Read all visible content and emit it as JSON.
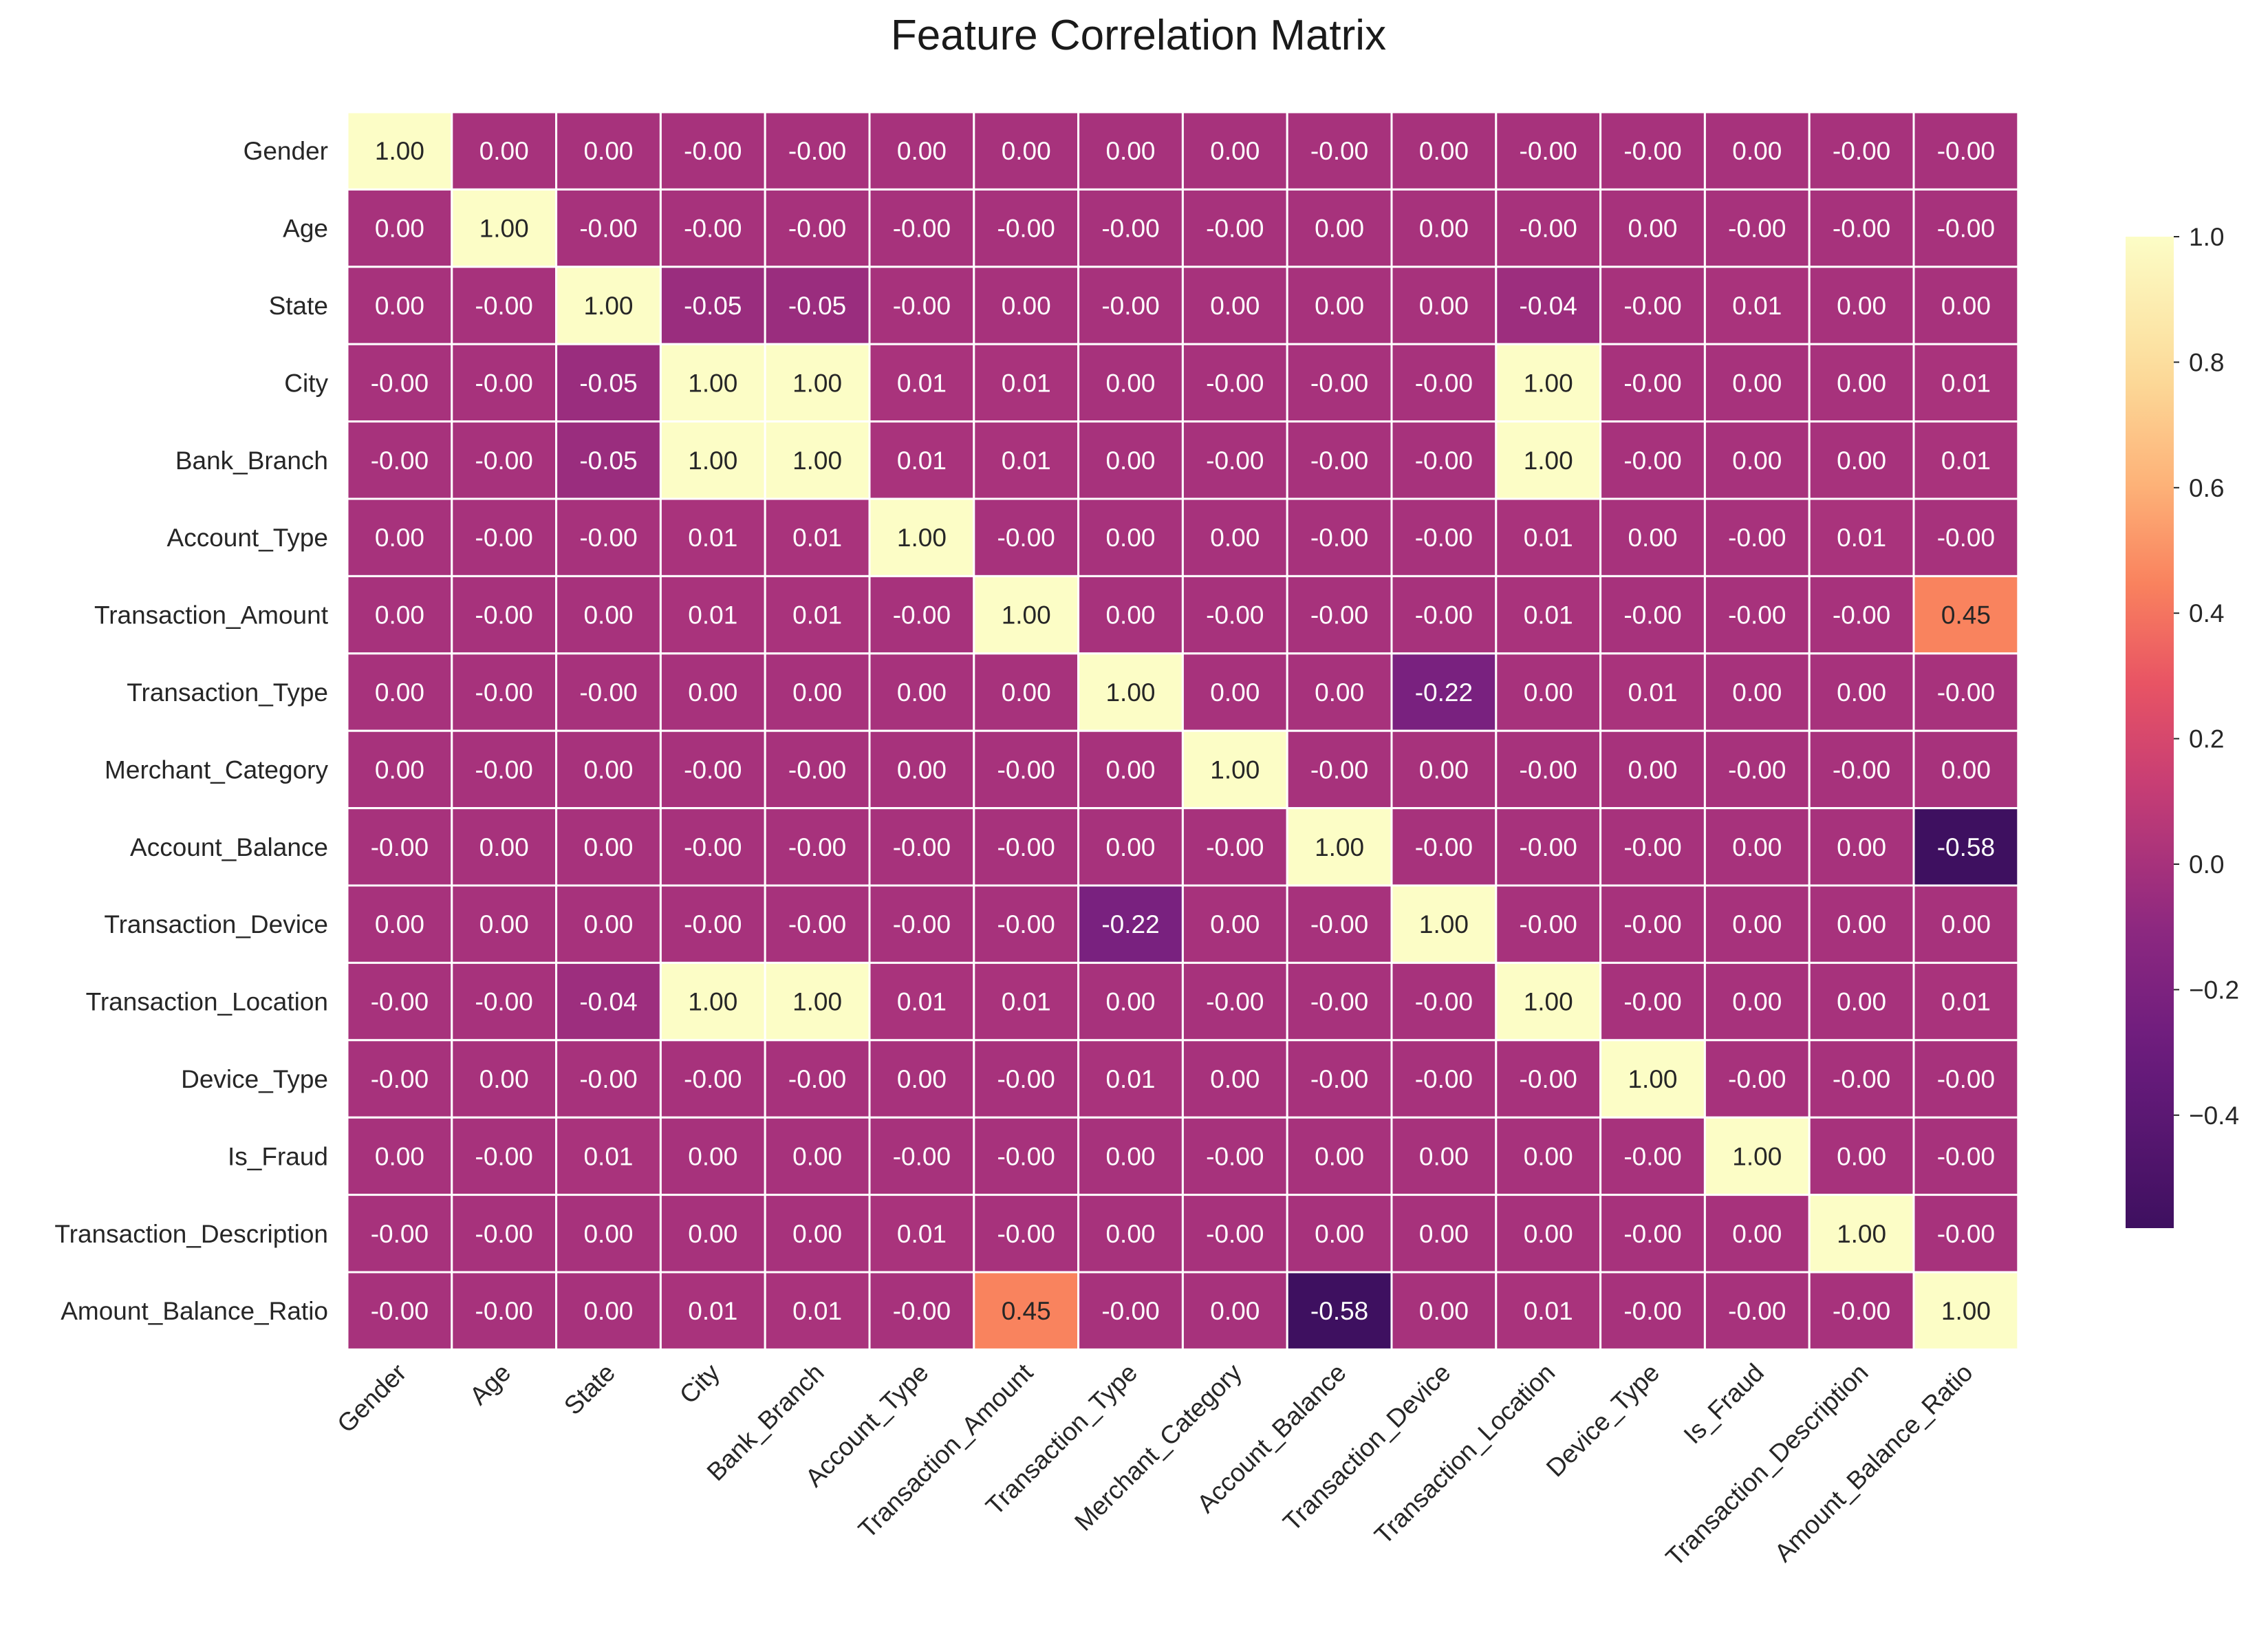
{
  "chart_data": {
    "type": "heatmap",
    "title": "Feature Correlation Matrix",
    "colormap": "magma",
    "value_format": "0.00",
    "vmin": -0.58,
    "vmax": 1.0,
    "rows": [
      "Gender",
      "Age",
      "State",
      "City",
      "Bank_Branch",
      "Account_Type",
      "Transaction_Amount",
      "Transaction_Type",
      "Merchant_Category",
      "Account_Balance",
      "Transaction_Device",
      "Transaction_Location",
      "Device_Type",
      "Is_Fraud",
      "Transaction_Description",
      "Amount_Balance_Ratio"
    ],
    "columns": [
      "Gender",
      "Age",
      "State",
      "City",
      "Bank_Branch",
      "Account_Type",
      "Transaction_Amount",
      "Transaction_Type",
      "Merchant_Category",
      "Account_Balance",
      "Transaction_Device",
      "Transaction_Location",
      "Device_Type",
      "Is_Fraud",
      "Transaction_Description",
      "Amount_Balance_Ratio"
    ],
    "cells": [
      [
        "1.00",
        "0.00",
        "0.00",
        "-0.00",
        "-0.00",
        "0.00",
        "0.00",
        "0.00",
        "0.00",
        "-0.00",
        "0.00",
        "-0.00",
        "-0.00",
        "0.00",
        "-0.00",
        "-0.00"
      ],
      [
        "0.00",
        "1.00",
        "-0.00",
        "-0.00",
        "-0.00",
        "-0.00",
        "-0.00",
        "-0.00",
        "-0.00",
        "0.00",
        "0.00",
        "-0.00",
        "0.00",
        "-0.00",
        "-0.00",
        "-0.00"
      ],
      [
        "0.00",
        "-0.00",
        "1.00",
        "-0.05",
        "-0.05",
        "-0.00",
        "0.00",
        "-0.00",
        "0.00",
        "0.00",
        "0.00",
        "-0.04",
        "-0.00",
        "0.01",
        "0.00",
        "0.00"
      ],
      [
        "-0.00",
        "-0.00",
        "-0.05",
        "1.00",
        "1.00",
        "0.01",
        "0.01",
        "0.00",
        "-0.00",
        "-0.00",
        "-0.00",
        "1.00",
        "-0.00",
        "0.00",
        "0.00",
        "0.01"
      ],
      [
        "-0.00",
        "-0.00",
        "-0.05",
        "1.00",
        "1.00",
        "0.01",
        "0.01",
        "0.00",
        "-0.00",
        "-0.00",
        "-0.00",
        "1.00",
        "-0.00",
        "0.00",
        "0.00",
        "0.01"
      ],
      [
        "0.00",
        "-0.00",
        "-0.00",
        "0.01",
        "0.01",
        "1.00",
        "-0.00",
        "0.00",
        "0.00",
        "-0.00",
        "-0.00",
        "0.01",
        "0.00",
        "-0.00",
        "0.01",
        "-0.00"
      ],
      [
        "0.00",
        "-0.00",
        "0.00",
        "0.01",
        "0.01",
        "-0.00",
        "1.00",
        "0.00",
        "-0.00",
        "-0.00",
        "-0.00",
        "0.01",
        "-0.00",
        "-0.00",
        "-0.00",
        "0.45"
      ],
      [
        "0.00",
        "-0.00",
        "-0.00",
        "0.00",
        "0.00",
        "0.00",
        "0.00",
        "1.00",
        "0.00",
        "0.00",
        "-0.22",
        "0.00",
        "0.01",
        "0.00",
        "0.00",
        "-0.00"
      ],
      [
        "0.00",
        "-0.00",
        "0.00",
        "-0.00",
        "-0.00",
        "0.00",
        "-0.00",
        "0.00",
        "1.00",
        "-0.00",
        "0.00",
        "-0.00",
        "0.00",
        "-0.00",
        "-0.00",
        "0.00"
      ],
      [
        "-0.00",
        "0.00",
        "0.00",
        "-0.00",
        "-0.00",
        "-0.00",
        "-0.00",
        "0.00",
        "-0.00",
        "1.00",
        "-0.00",
        "-0.00",
        "-0.00",
        "0.00",
        "0.00",
        "-0.58"
      ],
      [
        "0.00",
        "0.00",
        "0.00",
        "-0.00",
        "-0.00",
        "-0.00",
        "-0.00",
        "-0.22",
        "0.00",
        "-0.00",
        "1.00",
        "-0.00",
        "-0.00",
        "0.00",
        "0.00",
        "0.00"
      ],
      [
        "-0.00",
        "-0.00",
        "-0.04",
        "1.00",
        "1.00",
        "0.01",
        "0.01",
        "0.00",
        "-0.00",
        "-0.00",
        "-0.00",
        "1.00",
        "-0.00",
        "0.00",
        "0.00",
        "0.01"
      ],
      [
        "-0.00",
        "0.00",
        "-0.00",
        "-0.00",
        "-0.00",
        "0.00",
        "-0.00",
        "0.01",
        "0.00",
        "-0.00",
        "-0.00",
        "-0.00",
        "1.00",
        "-0.00",
        "-0.00",
        "-0.00"
      ],
      [
        "0.00",
        "-0.00",
        "0.01",
        "0.00",
        "0.00",
        "-0.00",
        "-0.00",
        "0.00",
        "-0.00",
        "0.00",
        "0.00",
        "0.00",
        "-0.00",
        "1.00",
        "0.00",
        "-0.00"
      ],
      [
        "-0.00",
        "-0.00",
        "0.00",
        "0.00",
        "0.00",
        "0.01",
        "-0.00",
        "0.00",
        "-0.00",
        "0.00",
        "0.00",
        "0.00",
        "-0.00",
        "0.00",
        "1.00",
        "-0.00"
      ],
      [
        "-0.00",
        "-0.00",
        "0.00",
        "0.01",
        "0.01",
        "-0.00",
        "0.45",
        "-0.00",
        "0.00",
        "-0.58",
        "0.00",
        "0.01",
        "-0.00",
        "-0.00",
        "-0.00",
        "1.00"
      ]
    ],
    "colorbar": {
      "ticks": [
        1.0,
        0.8,
        0.6,
        0.4,
        0.2,
        0.0,
        -0.2,
        -0.4
      ],
      "tick_labels": [
        "1.0",
        "0.8",
        "0.6",
        "0.4",
        "0.2",
        "0.0",
        "−0.2",
        "−0.4"
      ]
    }
  }
}
